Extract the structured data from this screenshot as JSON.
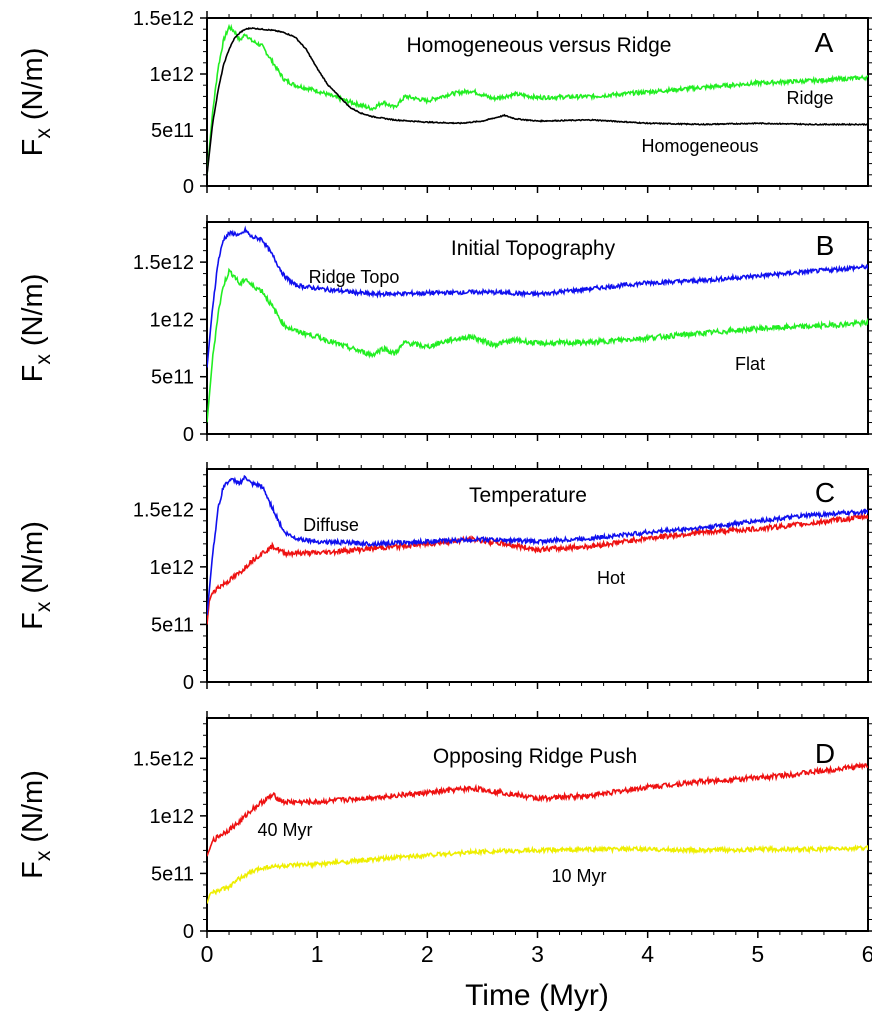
{
  "colors": {
    "green": "#22ee22",
    "black": "#000000",
    "blue": "#1010ee",
    "red": "#ee1111",
    "yellow": "#eeee00"
  },
  "x_axis": {
    "label": "Time (Myr)",
    "ticks": [
      "0",
      "1",
      "2",
      "3",
      "4",
      "5",
      "6"
    ]
  },
  "chart_data": [
    {
      "type": "line",
      "panel": "A",
      "title": "Homogeneous versus Ridge",
      "ylabel": "Fx (N/m)",
      "ylabel_main": "F",
      "ylabel_sub": "x",
      "ylabel_rest": " (N/m)",
      "xlim": [
        0,
        6
      ],
      "ylim": [
        0,
        1500000000000.0
      ],
      "yticks": [
        0,
        500000000000.0,
        1000000000000.0,
        1500000000000.0
      ],
      "ytick_labels": [
        "0",
        "5e11",
        "1e12",
        "1.5e12"
      ],
      "series": [
        {
          "name": "Homogeneous",
          "color": "#000000",
          "points": [
            [
              0,
              100000000000.0
            ],
            [
              0.05,
              550000000000.0
            ],
            [
              0.1,
              850000000000.0
            ],
            [
              0.15,
              1080000000000.0
            ],
            [
              0.2,
              1220000000000.0
            ],
            [
              0.25,
              1320000000000.0
            ],
            [
              0.3,
              1370000000000.0
            ],
            [
              0.35,
              1400000000000.0
            ],
            [
              0.4,
              1410000000000.0
            ],
            [
              0.5,
              1400000000000.0
            ],
            [
              0.6,
              1390000000000.0
            ],
            [
              0.7,
              1370000000000.0
            ],
            [
              0.8,
              1330000000000.0
            ],
            [
              0.9,
              1220000000000.0
            ],
            [
              1.0,
              1050000000000.0
            ],
            [
              1.1,
              900000000000.0
            ],
            [
              1.2,
              800000000000.0
            ],
            [
              1.3,
              700000000000.0
            ],
            [
              1.4,
              650000000000.0
            ],
            [
              1.5,
              620000000000.0
            ],
            [
              1.7,
              590000000000.0
            ],
            [
              2.0,
              570000000000.0
            ],
            [
              2.3,
              560000000000.0
            ],
            [
              2.5,
              580000000000.0
            ],
            [
              2.7,
              630000000000.0
            ],
            [
              2.8,
              600000000000.0
            ],
            [
              3.0,
              580000000000.0
            ],
            [
              3.5,
              590000000000.0
            ],
            [
              4.0,
              560000000000.0
            ],
            [
              4.5,
              550000000000.0
            ],
            [
              5.0,
              560000000000.0
            ],
            [
              5.5,
              550000000000.0
            ],
            [
              6.0,
              550000000000.0
            ]
          ]
        },
        {
          "name": "Ridge",
          "color": "#22ee22",
          "points": [
            [
              0,
              100000000000.0
            ],
            [
              0.05,
              650000000000.0
            ],
            [
              0.1,
              1050000000000.0
            ],
            [
              0.15,
              1300000000000.0
            ],
            [
              0.2,
              1420000000000.0
            ],
            [
              0.25,
              1380000000000.0
            ],
            [
              0.3,
              1300000000000.0
            ],
            [
              0.35,
              1360000000000.0
            ],
            [
              0.4,
              1300000000000.0
            ],
            [
              0.5,
              1250000000000.0
            ],
            [
              0.6,
              1100000000000.0
            ],
            [
              0.7,
              950000000000.0
            ],
            [
              0.8,
              900000000000.0
            ],
            [
              1.0,
              850000000000.0
            ],
            [
              1.2,
              780000000000.0
            ],
            [
              1.4,
              720000000000.0
            ],
            [
              1.5,
              690000000000.0
            ],
            [
              1.6,
              750000000000.0
            ],
            [
              1.7,
              700000000000.0
            ],
            [
              1.8,
              800000000000.0
            ],
            [
              2.0,
              760000000000.0
            ],
            [
              2.2,
              820000000000.0
            ],
            [
              2.4,
              850000000000.0
            ],
            [
              2.6,
              780000000000.0
            ],
            [
              2.8,
              820000000000.0
            ],
            [
              3.0,
              790000000000.0
            ],
            [
              3.5,
              800000000000.0
            ],
            [
              4.0,
              840000000000.0
            ],
            [
              4.5,
              880000000000.0
            ],
            [
              5.0,
              920000000000.0
            ],
            [
              5.5,
              940000000000.0
            ],
            [
              6.0,
              970000000000.0
            ]
          ]
        }
      ]
    },
    {
      "type": "line",
      "panel": "B",
      "title": "Initial Topography",
      "ylabel": "Fx (N/m)",
      "ylabel_main": "F",
      "ylabel_sub": "x",
      "ylabel_rest": " (N/m)",
      "xlim": [
        0,
        6
      ],
      "ylim": [
        0,
        1850000000000.0
      ],
      "yticks": [
        0,
        500000000000.0,
        1000000000000.0,
        1500000000000.0
      ],
      "ytick_labels": [
        "0",
        "5e11",
        "1e12",
        "1.5e12"
      ],
      "series": [
        {
          "name": "Ridge Topo",
          "color": "#1010ee",
          "points": [
            [
              0,
              580000000000.0
            ],
            [
              0.05,
              1100000000000.0
            ],
            [
              0.1,
              1500000000000.0
            ],
            [
              0.15,
              1700000000000.0
            ],
            [
              0.2,
              1750000000000.0
            ],
            [
              0.25,
              1750000000000.0
            ],
            [
              0.3,
              1730000000000.0
            ],
            [
              0.35,
              1780000000000.0
            ],
            [
              0.4,
              1720000000000.0
            ],
            [
              0.5,
              1700000000000.0
            ],
            [
              0.6,
              1550000000000.0
            ],
            [
              0.7,
              1380000000000.0
            ],
            [
              0.8,
              1300000000000.0
            ],
            [
              1.0,
              1270000000000.0
            ],
            [
              1.5,
              1220000000000.0
            ],
            [
              2.0,
              1230000000000.0
            ],
            [
              2.5,
              1240000000000.0
            ],
            [
              3.0,
              1220000000000.0
            ],
            [
              3.5,
              1270000000000.0
            ],
            [
              4.0,
              1320000000000.0
            ],
            [
              4.5,
              1340000000000.0
            ],
            [
              5.0,
              1380000000000.0
            ],
            [
              5.5,
              1420000000000.0
            ],
            [
              6.0,
              1460000000000.0
            ]
          ]
        },
        {
          "name": "Flat",
          "color": "#22ee22",
          "points": [
            [
              0,
              100000000000.0
            ],
            [
              0.05,
              650000000000.0
            ],
            [
              0.1,
              1050000000000.0
            ],
            [
              0.15,
              1300000000000.0
            ],
            [
              0.2,
              1420000000000.0
            ],
            [
              0.25,
              1380000000000.0
            ],
            [
              0.3,
              1300000000000.0
            ],
            [
              0.35,
              1360000000000.0
            ],
            [
              0.4,
              1300000000000.0
            ],
            [
              0.5,
              1250000000000.0
            ],
            [
              0.6,
              1100000000000.0
            ],
            [
              0.7,
              950000000000.0
            ],
            [
              0.8,
              900000000000.0
            ],
            [
              1.0,
              850000000000.0
            ],
            [
              1.2,
              780000000000.0
            ],
            [
              1.4,
              720000000000.0
            ],
            [
              1.5,
              690000000000.0
            ],
            [
              1.6,
              750000000000.0
            ],
            [
              1.7,
              700000000000.0
            ],
            [
              1.8,
              800000000000.0
            ],
            [
              2.0,
              760000000000.0
            ],
            [
              2.2,
              820000000000.0
            ],
            [
              2.4,
              850000000000.0
            ],
            [
              2.6,
              780000000000.0
            ],
            [
              2.8,
              820000000000.0
            ],
            [
              3.0,
              790000000000.0
            ],
            [
              3.5,
              800000000000.0
            ],
            [
              4.0,
              840000000000.0
            ],
            [
              4.5,
              880000000000.0
            ],
            [
              5.0,
              920000000000.0
            ],
            [
              5.5,
              940000000000.0
            ],
            [
              6.0,
              970000000000.0
            ]
          ]
        }
      ]
    },
    {
      "type": "line",
      "panel": "C",
      "title": "Temperature",
      "ylabel": "Fx (N/m)",
      "ylabel_main": "F",
      "ylabel_sub": "x",
      "ylabel_rest": " (N/m)",
      "xlim": [
        0,
        6
      ],
      "ylim": [
        0,
        1850000000000.0
      ],
      "yticks": [
        0,
        500000000000.0,
        1000000000000.0,
        1500000000000.0
      ],
      "ytick_labels": [
        "0",
        "5e11",
        "1e12",
        "1.5e12"
      ],
      "series": [
        {
          "name": "Diffuse",
          "color": "#1010ee",
          "points": [
            [
              0,
              580000000000.0
            ],
            [
              0.05,
              1100000000000.0
            ],
            [
              0.1,
              1500000000000.0
            ],
            [
              0.15,
              1700000000000.0
            ],
            [
              0.2,
              1750000000000.0
            ],
            [
              0.25,
              1750000000000.0
            ],
            [
              0.3,
              1730000000000.0
            ],
            [
              0.35,
              1780000000000.0
            ],
            [
              0.4,
              1720000000000.0
            ],
            [
              0.5,
              1700000000000.0
            ],
            [
              0.6,
              1500000000000.0
            ],
            [
              0.7,
              1300000000000.0
            ],
            [
              0.8,
              1250000000000.0
            ],
            [
              1.0,
              1220000000000.0
            ],
            [
              1.5,
              1200000000000.0
            ],
            [
              2.0,
              1220000000000.0
            ],
            [
              2.5,
              1240000000000.0
            ],
            [
              3.0,
              1220000000000.0
            ],
            [
              3.5,
              1250000000000.0
            ],
            [
              4.0,
              1300000000000.0
            ],
            [
              4.5,
              1340000000000.0
            ],
            [
              5.0,
              1400000000000.0
            ],
            [
              5.5,
              1450000000000.0
            ],
            [
              6.0,
              1480000000000.0
            ]
          ]
        },
        {
          "name": "Hot",
          "color": "#ee1111",
          "points": [
            [
              0,
              500000000000.0
            ],
            [
              0.02,
              700000000000.0
            ],
            [
              0.05,
              780000000000.0
            ],
            [
              0.1,
              820000000000.0
            ],
            [
              0.2,
              880000000000.0
            ],
            [
              0.3,
              950000000000.0
            ],
            [
              0.4,
              1050000000000.0
            ],
            [
              0.5,
              1120000000000.0
            ],
            [
              0.6,
              1180000000000.0
            ],
            [
              0.7,
              1120000000000.0
            ],
            [
              1.0,
              1120000000000.0
            ],
            [
              1.5,
              1160000000000.0
            ],
            [
              2.0,
              1200000000000.0
            ],
            [
              2.4,
              1240000000000.0
            ],
            [
              2.7,
              1200000000000.0
            ],
            [
              3.0,
              1150000000000.0
            ],
            [
              3.5,
              1180000000000.0
            ],
            [
              4.0,
              1250000000000.0
            ],
            [
              4.5,
              1300000000000.0
            ],
            [
              5.0,
              1330000000000.0
            ],
            [
              5.5,
              1380000000000.0
            ],
            [
              6.0,
              1440000000000.0
            ]
          ]
        }
      ]
    },
    {
      "type": "line",
      "panel": "D",
      "title": "Opposing Ridge Push",
      "ylabel": "Fx (N/m)",
      "ylabel_main": "F",
      "ylabel_sub": "x",
      "ylabel_rest": " (N/m)",
      "xlim": [
        0,
        6
      ],
      "ylim": [
        0,
        1850000000000.0
      ],
      "yticks": [
        0,
        500000000000.0,
        1000000000000.0,
        1500000000000.0
      ],
      "ytick_labels": [
        "0",
        "5e11",
        "1e12",
        "1.5e12"
      ],
      "series": [
        {
          "name": "40 Myr",
          "color": "#ee1111",
          "points": [
            [
              0,
              650000000000.0
            ],
            [
              0.02,
              700000000000.0
            ],
            [
              0.05,
              780000000000.0
            ],
            [
              0.1,
              820000000000.0
            ],
            [
              0.2,
              880000000000.0
            ],
            [
              0.3,
              950000000000.0
            ],
            [
              0.4,
              1050000000000.0
            ],
            [
              0.5,
              1120000000000.0
            ],
            [
              0.6,
              1180000000000.0
            ],
            [
              0.7,
              1120000000000.0
            ],
            [
              1.0,
              1120000000000.0
            ],
            [
              1.5,
              1160000000000.0
            ],
            [
              2.0,
              1200000000000.0
            ],
            [
              2.4,
              1240000000000.0
            ],
            [
              2.7,
              1200000000000.0
            ],
            [
              3.0,
              1150000000000.0
            ],
            [
              3.5,
              1180000000000.0
            ],
            [
              4.0,
              1250000000000.0
            ],
            [
              4.5,
              1300000000000.0
            ],
            [
              5.0,
              1330000000000.0
            ],
            [
              5.5,
              1380000000000.0
            ],
            [
              6.0,
              1440000000000.0
            ]
          ]
        },
        {
          "name": "10 Myr",
          "color": "#eeee00",
          "points": [
            [
              0,
              240000000000.0
            ],
            [
              0.03,
              330000000000.0
            ],
            [
              0.1,
              350000000000.0
            ],
            [
              0.2,
              380000000000.0
            ],
            [
              0.3,
              460000000000.0
            ],
            [
              0.4,
              510000000000.0
            ],
            [
              0.5,
              550000000000.0
            ],
            [
              0.6,
              560000000000.0
            ],
            [
              0.8,
              570000000000.0
            ],
            [
              1.0,
              580000000000.0
            ],
            [
              1.5,
              620000000000.0
            ],
            [
              2.0,
              660000000000.0
            ],
            [
              2.5,
              690000000000.0
            ],
            [
              3.0,
              700000000000.0
            ],
            [
              3.5,
              710000000000.0
            ],
            [
              4.0,
              710000000000.0
            ],
            [
              4.5,
              700000000000.0
            ],
            [
              5.0,
              710000000000.0
            ],
            [
              5.5,
              710000000000.0
            ],
            [
              6.0,
              720000000000.0
            ]
          ]
        }
      ]
    }
  ]
}
